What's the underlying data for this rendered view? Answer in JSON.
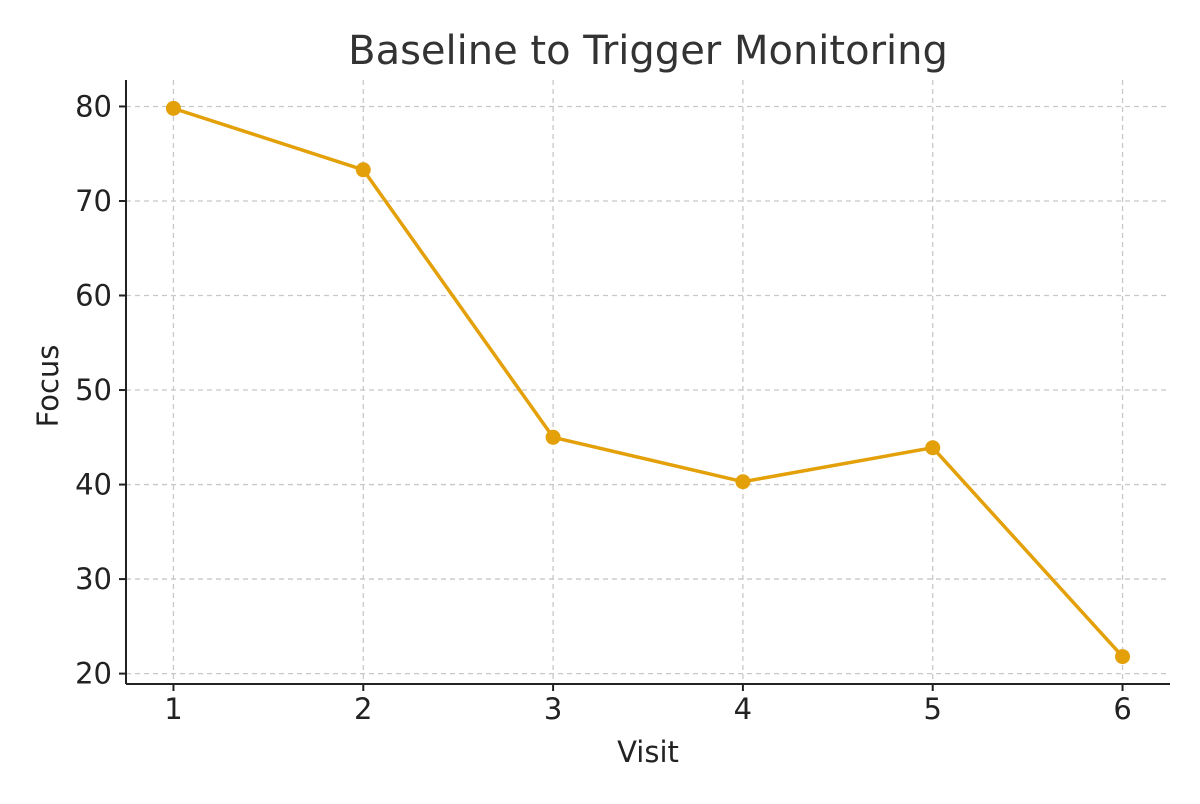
{
  "chart_data": {
    "type": "line",
    "title": "Baseline to Trigger Monitoring",
    "xlabel": "Visit",
    "ylabel": "Focus",
    "x": [
      1,
      2,
      3,
      4,
      5,
      6
    ],
    "series": [
      {
        "values": [
          79.8,
          73.3,
          45.0,
          40.3,
          43.9,
          21.8
        ]
      }
    ],
    "xticks": [
      1,
      2,
      3,
      4,
      5,
      6
    ],
    "yticks": [
      20,
      30,
      40,
      50,
      60,
      70,
      80
    ],
    "xlim": [
      0.75,
      6.25
    ],
    "ylim": [
      18.9,
      82.8
    ],
    "grid": true,
    "colors": {
      "series": "#E3A008"
    },
    "marker": "circle"
  }
}
